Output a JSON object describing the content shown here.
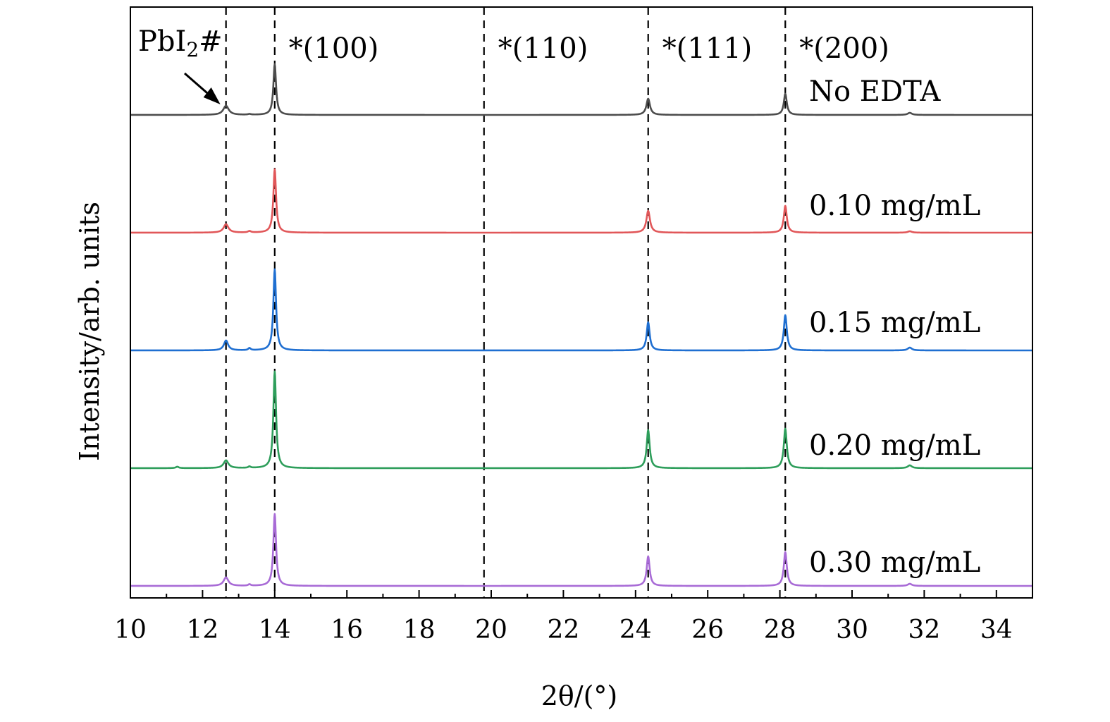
{
  "chart_data": {
    "type": "line",
    "title": "",
    "xlabel": "2θ/(°)",
    "ylabel": "Intensity/arb. units",
    "xlim": [
      10,
      35
    ],
    "x_ticks": [
      "10",
      "12",
      "14",
      "16",
      "18",
      "20",
      "22",
      "24",
      "26",
      "28",
      "30",
      "32",
      "34"
    ],
    "y_ticks": [],
    "grid": false,
    "legend": "inline labels at right of each trace",
    "stacked_offset": true,
    "series": [
      {
        "name": "No EDTA",
        "color": "#4d4d4d",
        "baseline": 0,
        "peaks": [
          {
            "x": 12.65,
            "height": 13,
            "width": 0.09
          },
          {
            "x": 13.3,
            "height": 1,
            "width": 0.05
          },
          {
            "x": 14.0,
            "height": 72,
            "width": 0.045
          },
          {
            "x": 24.35,
            "height": 23,
            "width": 0.06
          },
          {
            "x": 28.15,
            "height": 30,
            "width": 0.05
          },
          {
            "x": 31.6,
            "height": 3,
            "width": 0.07
          }
        ]
      },
      {
        "name": "0.10 mg/mL",
        "color": "#e15759",
        "baseline": 0,
        "peaks": [
          {
            "x": 12.65,
            "height": 12,
            "width": 0.08
          },
          {
            "x": 13.3,
            "height": 2,
            "width": 0.05
          },
          {
            "x": 14.0,
            "height": 90,
            "width": 0.045
          },
          {
            "x": 24.35,
            "height": 31,
            "width": 0.06
          },
          {
            "x": 28.15,
            "height": 38,
            "width": 0.05
          },
          {
            "x": 31.6,
            "height": 2,
            "width": 0.07
          }
        ]
      },
      {
        "name": "0.15 mg/mL",
        "color": "#1f6fd1",
        "baseline": 0,
        "peaks": [
          {
            "x": 12.65,
            "height": 14,
            "width": 0.07
          },
          {
            "x": 13.3,
            "height": 3,
            "width": 0.04
          },
          {
            "x": 14.0,
            "height": 115,
            "width": 0.045
          },
          {
            "x": 24.35,
            "height": 40,
            "width": 0.05
          },
          {
            "x": 28.15,
            "height": 50,
            "width": 0.05
          },
          {
            "x": 31.6,
            "height": 4,
            "width": 0.07
          }
        ]
      },
      {
        "name": "0.20 mg/mL",
        "color": "#2e9e5b",
        "baseline": 0,
        "peaks": [
          {
            "x": 11.3,
            "height": 2,
            "width": 0.05
          },
          {
            "x": 12.65,
            "height": 11,
            "width": 0.08
          },
          {
            "x": 13.3,
            "height": 2,
            "width": 0.04
          },
          {
            "x": 14.0,
            "height": 137,
            "width": 0.045
          },
          {
            "x": 24.35,
            "height": 54,
            "width": 0.05
          },
          {
            "x": 28.15,
            "height": 56,
            "width": 0.05
          },
          {
            "x": 31.6,
            "height": 4,
            "width": 0.07
          }
        ]
      },
      {
        "name": "0.30 mg/mL",
        "color": "#a86bd6",
        "baseline": 0,
        "peaks": [
          {
            "x": 12.65,
            "height": 12,
            "width": 0.08
          },
          {
            "x": 13.3,
            "height": 2,
            "width": 0.04
          },
          {
            "x": 14.0,
            "height": 102,
            "width": 0.045
          },
          {
            "x": 24.35,
            "height": 42,
            "width": 0.05
          },
          {
            "x": 28.15,
            "height": 48,
            "width": 0.05
          },
          {
            "x": 31.6,
            "height": 3,
            "width": 0.07
          }
        ]
      }
    ],
    "reference_lines": [
      {
        "x": 12.65,
        "label": ""
      },
      {
        "x": 14.0,
        "label": "*(100)"
      },
      {
        "x": 19.8,
        "label": "*(110)"
      },
      {
        "x": 24.35,
        "label": "*(111)"
      },
      {
        "x": 28.15,
        "label": "*(200)"
      }
    ],
    "annotations": [
      {
        "label": "PbI2#",
        "label_main": "PbI",
        "label_sub": "2",
        "label_suffix": "#",
        "points_to_x": 12.65,
        "arrow": true
      }
    ]
  }
}
